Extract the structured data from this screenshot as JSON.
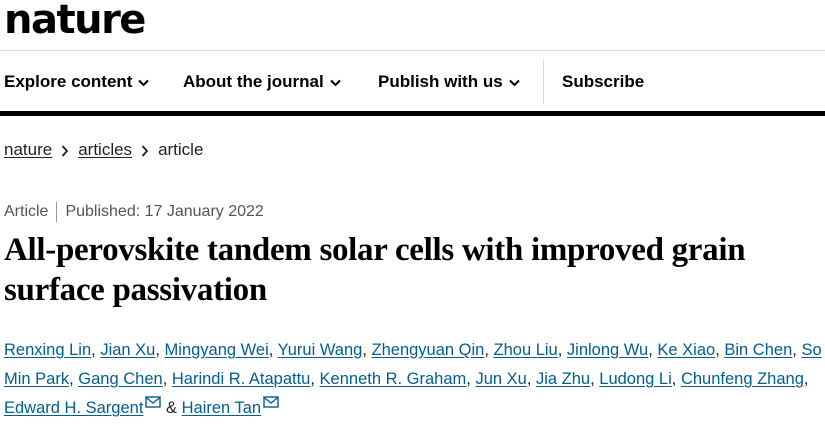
{
  "site": {
    "logo": "nature"
  },
  "nav": {
    "items": [
      {
        "label": "Explore content"
      },
      {
        "label": "About the journal"
      },
      {
        "label": "Publish with us"
      }
    ],
    "subscribe": "Subscribe"
  },
  "breadcrumb": {
    "items": [
      "nature",
      "articles",
      "article"
    ]
  },
  "article": {
    "type": "Article",
    "published": "Published: 17 January 2022",
    "title": "All-perovskite tandem solar cells with improved grain surface passivation",
    "authors": [
      "Renxing Lin",
      "Jian Xu",
      "Mingyang Wei",
      "Yurui Wang",
      "Zhengyuan Qin",
      "Zhou Liu",
      "Jinlong Wu",
      "Ke Xiao",
      "Bin Chen",
      "So Min Park",
      "Gang Chen",
      "Harindi R. Atapattu",
      "Kenneth R. Graham",
      "Jun Xu",
      "Jia Zhu",
      "Ludong Li",
      "Chunfeng Zhang",
      "Edward H. Sargent",
      "Hairen Tan"
    ],
    "conjunction": "&"
  },
  "icons": {
    "nav_chevron": "chevron-down-icon",
    "breadcrumb_sep": "chevron-right-icon",
    "email": "envelope-icon"
  },
  "colors": {
    "link": "#025e8d",
    "text": "#222222",
    "bar": "#000000"
  }
}
